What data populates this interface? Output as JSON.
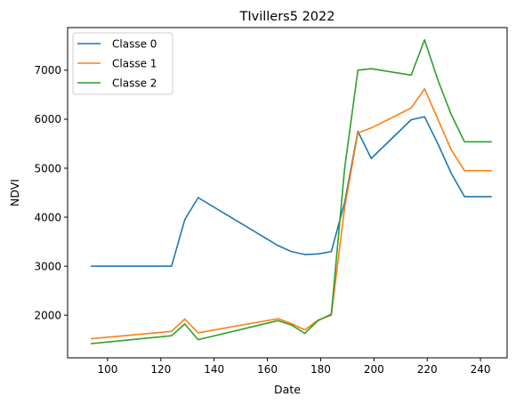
{
  "chart_data": {
    "type": "line",
    "title": "TIvillers5 2022",
    "xlabel": "Date",
    "ylabel": "NDVI",
    "xlim": [
      85,
      250
    ],
    "ylim": [
      1130,
      7870
    ],
    "xticks": [
      100,
      120,
      140,
      160,
      180,
      200,
      220,
      240
    ],
    "yticks": [
      2000,
      3000,
      4000,
      5000,
      6000,
      7000
    ],
    "grid": false,
    "legend_position": "top-left",
    "series": [
      {
        "name": "Classe 0",
        "color": "#1f77b4",
        "x": [
          94,
          124,
          129,
          134,
          164,
          169,
          174,
          179,
          184,
          189,
          194,
          199,
          214,
          219,
          224,
          229,
          234,
          244
        ],
        "y": [
          3000,
          3000,
          3950,
          4400,
          3420,
          3300,
          3240,
          3250,
          3300,
          4300,
          5750,
          5200,
          5990,
          6050,
          5500,
          4900,
          4420,
          4420
        ]
      },
      {
        "name": "Classe 1",
        "color": "#ff7f0e",
        "x": [
          94,
          124,
          129,
          134,
          164,
          169,
          174,
          179,
          184,
          189,
          194,
          199,
          214,
          219,
          224,
          229,
          234,
          244
        ],
        "y": [
          1520,
          1670,
          1920,
          1640,
          1930,
          1830,
          1700,
          1900,
          2000,
          4200,
          5720,
          5820,
          6230,
          6620,
          6000,
          5380,
          4950,
          4950
        ]
      },
      {
        "name": "Classe 2",
        "color": "#2ca02c",
        "x": [
          94,
          124,
          129,
          134,
          164,
          169,
          174,
          179,
          184,
          189,
          194,
          199,
          214,
          219,
          224,
          229,
          234,
          244
        ],
        "y": [
          1420,
          1580,
          1820,
          1500,
          1890,
          1800,
          1630,
          1890,
          2020,
          5000,
          7000,
          7030,
          6900,
          7620,
          6800,
          6100,
          5540,
          5540
        ]
      }
    ]
  }
}
